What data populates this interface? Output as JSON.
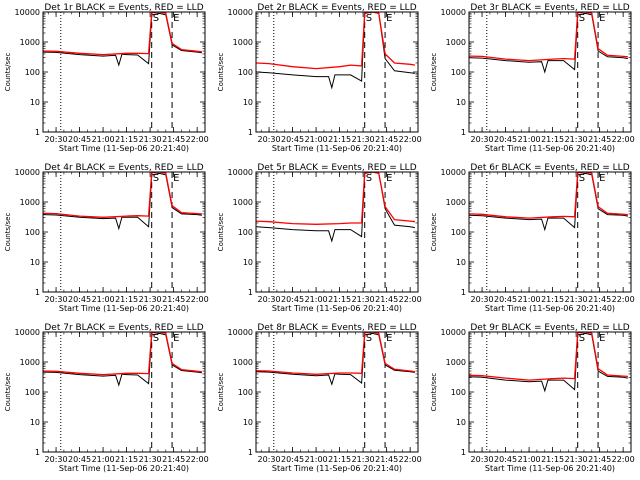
{
  "figure": {
    "xlabel": "Start Time (11-Sep-06 20:21:40)",
    "ylabel": "Counts/sec",
    "xticks": [
      "20:30",
      "20:45",
      "21:00",
      "21:15",
      "21:30",
      "21:45",
      "22:00"
    ],
    "yticks": [
      "1",
      "10",
      "100",
      "1000",
      "10000"
    ],
    "markers": [
      "S",
      "E"
    ]
  },
  "colors": {
    "events": "#000000",
    "lld": "#ff0000"
  },
  "chart_data": [
    {
      "type": "line",
      "title": "Det 1r BLACK = Events, RED = LLD",
      "xlim": [
        "20:21:40",
        "22:05"
      ],
      "ylim": [
        1,
        10000
      ],
      "yscale": "log",
      "vlines": [
        {
          "time": "20:33",
          "style": "dotted"
        },
        {
          "time": "21:31",
          "style": "dashed"
        },
        {
          "time": "21:44",
          "style": "dashed"
        }
      ],
      "series": [
        {
          "name": "Events",
          "x": [
            "20:22",
            "20:30",
            "20:45",
            "21:00",
            "21:08",
            "21:10",
            "21:12",
            "21:15",
            "21:22",
            "21:29",
            "21:31",
            "21:36",
            "21:40",
            "21:44",
            "21:50",
            "22:00",
            "22:03"
          ],
          "values": [
            460,
            450,
            380,
            340,
            360,
            170,
            390,
            380,
            370,
            190,
            8000,
            9000,
            8000,
            800,
            520,
            460,
            440
          ]
        },
        {
          "name": "LLD",
          "x": [
            "20:22",
            "20:30",
            "20:45",
            "21:00",
            "21:15",
            "21:22",
            "21:29",
            "21:31",
            "21:36",
            "21:40",
            "21:44",
            "21:50",
            "22:00",
            "22:03"
          ],
          "values": [
            500,
            490,
            420,
            380,
            420,
            420,
            410,
            9500,
            10000,
            9000,
            900,
            560,
            490,
            470
          ]
        }
      ]
    },
    {
      "type": "line",
      "title": "Det 2r BLACK = Events, RED = LLD",
      "xlim": [
        "20:21:40",
        "22:05"
      ],
      "ylim": [
        1,
        10000
      ],
      "yscale": "log",
      "vlines": [
        {
          "time": "20:33",
          "style": "dotted"
        },
        {
          "time": "21:31",
          "style": "dashed"
        },
        {
          "time": "21:44",
          "style": "dashed"
        }
      ],
      "series": [
        {
          "name": "Events",
          "x": [
            "20:22",
            "20:30",
            "20:45",
            "21:00",
            "21:08",
            "21:10",
            "21:12",
            "21:15",
            "21:22",
            "21:29",
            "21:31",
            "21:36",
            "21:40",
            "21:44",
            "21:50",
            "22:00",
            "22:03"
          ],
          "values": [
            100,
            95,
            80,
            70,
            70,
            30,
            80,
            80,
            80,
            50,
            9000,
            10000,
            9000,
            280,
            110,
            95,
            90
          ]
        },
        {
          "name": "LLD",
          "x": [
            "20:22",
            "20:30",
            "20:45",
            "21:00",
            "21:15",
            "21:22",
            "21:29",
            "21:31",
            "21:36",
            "21:40",
            "21:44",
            "21:50",
            "22:00",
            "22:03"
          ],
          "values": [
            200,
            190,
            150,
            130,
            150,
            170,
            160,
            9500,
            10000,
            9000,
            400,
            200,
            180,
            170
          ]
        }
      ]
    },
    {
      "type": "line",
      "title": "Det 3r BLACK = Events, RED = LLD",
      "xlim": [
        "20:21:40",
        "22:05"
      ],
      "ylim": [
        1,
        10000
      ],
      "yscale": "log",
      "vlines": [
        {
          "time": "20:33",
          "style": "dotted"
        },
        {
          "time": "21:31",
          "style": "dashed"
        },
        {
          "time": "21:44",
          "style": "dashed"
        }
      ],
      "series": [
        {
          "name": "Events",
          "x": [
            "20:22",
            "20:30",
            "20:45",
            "21:00",
            "21:08",
            "21:10",
            "21:12",
            "21:15",
            "21:22",
            "21:29",
            "21:31",
            "21:36",
            "21:40",
            "21:44",
            "21:50",
            "22:00",
            "22:03"
          ],
          "values": [
            300,
            290,
            240,
            210,
            220,
            100,
            240,
            240,
            240,
            120,
            8000,
            9000,
            8000,
            500,
            320,
            300,
            280
          ]
        },
        {
          "name": "LLD",
          "x": [
            "20:22",
            "20:30",
            "20:45",
            "21:00",
            "21:15",
            "21:22",
            "21:29",
            "21:31",
            "21:36",
            "21:40",
            "21:44",
            "21:50",
            "22:00",
            "22:03"
          ],
          "values": [
            340,
            330,
            270,
            240,
            270,
            280,
            270,
            9500,
            10000,
            9000,
            600,
            360,
            330,
            320
          ]
        }
      ]
    },
    {
      "type": "line",
      "title": "Det 4r BLACK = Events, RED = LLD",
      "xlim": [
        "20:21:40",
        "22:05"
      ],
      "ylim": [
        1,
        10000
      ],
      "yscale": "log",
      "vlines": [
        {
          "time": "20:33",
          "style": "dotted"
        },
        {
          "time": "21:31",
          "style": "dashed"
        },
        {
          "time": "21:44",
          "style": "dashed"
        }
      ],
      "series": [
        {
          "name": "Events",
          "x": [
            "20:22",
            "20:30",
            "20:45",
            "21:00",
            "21:08",
            "21:10",
            "21:12",
            "21:15",
            "21:22",
            "21:29",
            "21:31",
            "21:36",
            "21:40",
            "21:44",
            "21:50",
            "22:00",
            "22:03"
          ],
          "values": [
            380,
            370,
            310,
            280,
            290,
            130,
            310,
            310,
            310,
            150,
            8000,
            9000,
            8000,
            650,
            400,
            380,
            360
          ]
        },
        {
          "name": "LLD",
          "x": [
            "20:22",
            "20:30",
            "20:45",
            "21:00",
            "21:15",
            "21:22",
            "21:29",
            "21:31",
            "21:36",
            "21:40",
            "21:44",
            "21:50",
            "22:00",
            "22:03"
          ],
          "values": [
            420,
            410,
            340,
            310,
            340,
            350,
            340,
            9500,
            10000,
            9000,
            750,
            440,
            410,
            400
          ]
        }
      ]
    },
    {
      "type": "line",
      "title": "Det 5r BLACK = Events, RED = LLD",
      "xlim": [
        "20:21:40",
        "22:05"
      ],
      "ylim": [
        1,
        10000
      ],
      "yscale": "log",
      "vlines": [
        {
          "time": "20:33",
          "style": "dotted"
        },
        {
          "time": "21:31",
          "style": "dashed"
        },
        {
          "time": "21:44",
          "style": "dashed"
        }
      ],
      "series": [
        {
          "name": "Events",
          "x": [
            "20:22",
            "20:30",
            "20:45",
            "21:00",
            "21:08",
            "21:10",
            "21:12",
            "21:15",
            "21:22",
            "21:29",
            "21:31",
            "21:36",
            "21:40",
            "21:44",
            "21:50",
            "22:00",
            "22:03"
          ],
          "values": [
            150,
            140,
            120,
            110,
            110,
            50,
            120,
            120,
            120,
            70,
            9000,
            10000,
            9000,
            600,
            170,
            150,
            140
          ]
        },
        {
          "name": "LLD",
          "x": [
            "20:22",
            "20:30",
            "20:45",
            "21:00",
            "21:15",
            "21:22",
            "21:29",
            "21:31",
            "21:36",
            "21:40",
            "21:44",
            "21:50",
            "22:00",
            "22:03"
          ],
          "values": [
            230,
            220,
            190,
            180,
            190,
            200,
            200,
            9500,
            10000,
            9000,
            700,
            260,
            230,
            220
          ]
        }
      ]
    },
    {
      "type": "line",
      "title": "Det 6r BLACK = Events, RED = LLD",
      "xlim": [
        "20:21:40",
        "22:05"
      ],
      "ylim": [
        1,
        10000
      ],
      "yscale": "log",
      "vlines": [
        {
          "time": "20:33",
          "style": "dotted"
        },
        {
          "time": "21:31",
          "style": "dashed"
        },
        {
          "time": "21:44",
          "style": "dashed"
        }
      ],
      "series": [
        {
          "name": "Events",
          "x": [
            "20:22",
            "20:30",
            "20:45",
            "21:00",
            "21:08",
            "21:10",
            "21:12",
            "21:15",
            "21:22",
            "21:29",
            "21:31",
            "21:36",
            "21:40",
            "21:44",
            "21:50",
            "22:00",
            "22:03"
          ],
          "values": [
            360,
            350,
            290,
            260,
            270,
            120,
            290,
            290,
            290,
            140,
            8000,
            9000,
            8000,
            600,
            380,
            360,
            340
          ]
        },
        {
          "name": "LLD",
          "x": [
            "20:22",
            "20:30",
            "20:45",
            "21:00",
            "21:15",
            "21:22",
            "21:29",
            "21:31",
            "21:36",
            "21:40",
            "21:44",
            "21:50",
            "22:00",
            "22:03"
          ],
          "values": [
            400,
            390,
            320,
            290,
            320,
            330,
            320,
            9500,
            10000,
            9000,
            700,
            420,
            390,
            380
          ]
        }
      ]
    },
    {
      "type": "line",
      "title": "Det 7r BLACK = Events, RED = LLD",
      "xlim": [
        "20:21:40",
        "22:05"
      ],
      "ylim": [
        1,
        10000
      ],
      "yscale": "log",
      "vlines": [
        {
          "time": "20:33",
          "style": "dotted"
        },
        {
          "time": "21:31",
          "style": "dashed"
        },
        {
          "time": "21:44",
          "style": "dashed"
        }
      ],
      "series": [
        {
          "name": "Events",
          "x": [
            "20:22",
            "20:30",
            "20:45",
            "21:00",
            "21:08",
            "21:10",
            "21:12",
            "21:15",
            "21:22",
            "21:29",
            "21:31",
            "21:36",
            "21:40",
            "21:44",
            "21:50",
            "22:00",
            "22:03"
          ],
          "values": [
            460,
            450,
            380,
            340,
            360,
            170,
            390,
            380,
            370,
            190,
            8000,
            9000,
            8000,
            800,
            520,
            460,
            440
          ]
        },
        {
          "name": "LLD",
          "x": [
            "20:22",
            "20:30",
            "20:45",
            "21:00",
            "21:15",
            "21:22",
            "21:29",
            "21:31",
            "21:36",
            "21:40",
            "21:44",
            "21:50",
            "22:00",
            "22:03"
          ],
          "values": [
            500,
            490,
            420,
            380,
            420,
            420,
            410,
            9500,
            10000,
            9000,
            900,
            560,
            490,
            470
          ]
        }
      ]
    },
    {
      "type": "line",
      "title": "Det 8r BLACK = Events, RED = LLD",
      "xlim": [
        "20:21:40",
        "22:05"
      ],
      "ylim": [
        1,
        10000
      ],
      "yscale": "log",
      "vlines": [
        {
          "time": "20:33",
          "style": "dotted"
        },
        {
          "time": "21:31",
          "style": "dashed"
        },
        {
          "time": "21:44",
          "style": "dashed"
        }
      ],
      "series": [
        {
          "name": "Events",
          "x": [
            "20:22",
            "20:30",
            "20:45",
            "21:00",
            "21:08",
            "21:10",
            "21:12",
            "21:15",
            "21:22",
            "21:29",
            "21:31",
            "21:36",
            "21:40",
            "21:44",
            "21:50",
            "22:00",
            "22:03"
          ],
          "values": [
            470,
            460,
            390,
            350,
            370,
            180,
            400,
            390,
            380,
            200,
            8000,
            9000,
            8000,
            800,
            530,
            470,
            450
          ]
        },
        {
          "name": "LLD",
          "x": [
            "20:22",
            "20:30",
            "20:45",
            "21:00",
            "21:15",
            "21:22",
            "21:29",
            "21:31",
            "21:36",
            "21:40",
            "21:44",
            "21:50",
            "22:00",
            "22:03"
          ],
          "values": [
            510,
            500,
            430,
            390,
            430,
            430,
            420,
            9500,
            10000,
            9000,
            900,
            570,
            500,
            480
          ]
        }
      ]
    },
    {
      "type": "line",
      "title": "Det 9r BLACK = Events, RED = LLD",
      "xlim": [
        "20:21:40",
        "22:05"
      ],
      "ylim": [
        1,
        10000
      ],
      "yscale": "log",
      "vlines": [
        {
          "time": "20:33",
          "style": "dotted"
        },
        {
          "time": "21:31",
          "style": "dashed"
        },
        {
          "time": "21:44",
          "style": "dashed"
        }
      ],
      "series": [
        {
          "name": "Events",
          "x": [
            "20:22",
            "20:30",
            "20:45",
            "21:00",
            "21:08",
            "21:10",
            "21:12",
            "21:15",
            "21:22",
            "21:29",
            "21:31",
            "21:36",
            "21:40",
            "21:44",
            "21:50",
            "22:00",
            "22:03"
          ],
          "values": [
            320,
            310,
            250,
            220,
            230,
            110,
            250,
            250,
            250,
            120,
            8000,
            9000,
            8000,
            500,
            330,
            310,
            290
          ]
        },
        {
          "name": "LLD",
          "x": [
            "20:22",
            "20:30",
            "20:45",
            "21:00",
            "21:15",
            "21:22",
            "21:29",
            "21:31",
            "21:36",
            "21:40",
            "21:44",
            "21:50",
            "22:00",
            "22:03"
          ],
          "values": [
            360,
            350,
            290,
            250,
            280,
            290,
            280,
            9500,
            10000,
            9000,
            600,
            370,
            340,
            330
          ]
        }
      ]
    }
  ]
}
